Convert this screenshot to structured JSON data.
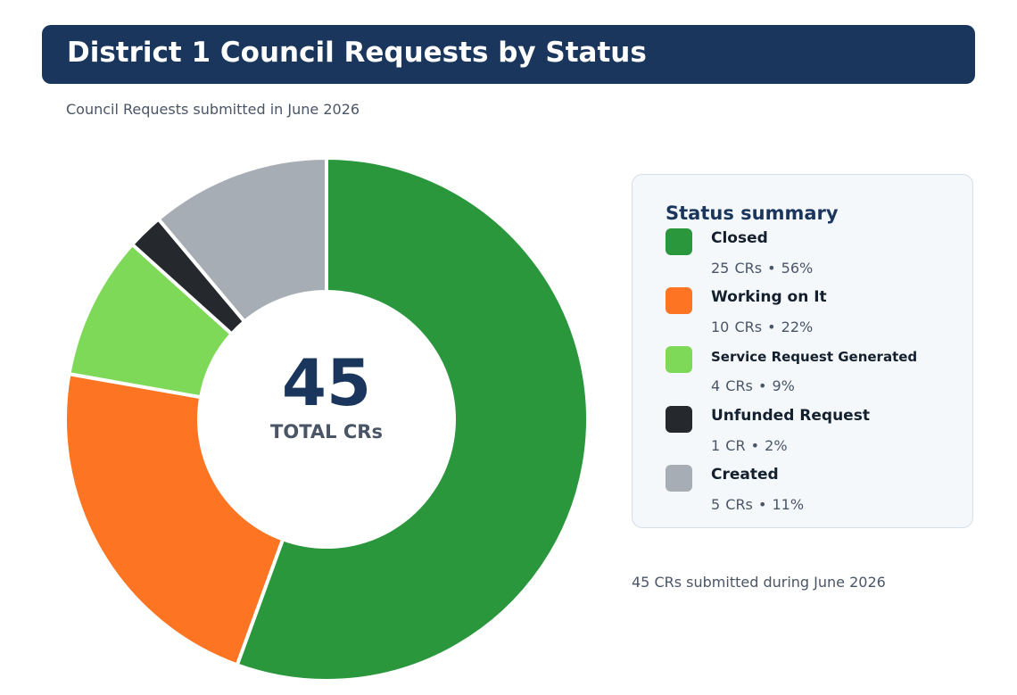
{
  "header": {
    "title": "District 1 Council Requests by Status",
    "subtitle": "Council Requests submitted in June 2026"
  },
  "chart_data": {
    "type": "pie",
    "hole": true,
    "categories": [
      "Closed",
      "Working on It",
      "Service Request Generated",
      "Unfunded Request",
      "Created"
    ],
    "values": [
      25,
      10,
      4,
      1,
      5
    ],
    "colors": [
      "#2a973d",
      "#fd7522",
      "#7fd958",
      "#25292e",
      "#a7adb4"
    ],
    "center_value": "45",
    "center_label": "TOTAL CRs"
  },
  "summary": {
    "title": "Status summary",
    "items": [
      {
        "label": "Closed",
        "detail": "25 CRs  •  56%",
        "color": "#2a973d"
      },
      {
        "label": "Working on It",
        "detail": "10 CRs  •  22%",
        "color": "#fd7522"
      },
      {
        "label": "Service Request Generated",
        "detail": "4 CRs  •  9%",
        "color": "#7fd958"
      },
      {
        "label": "Unfunded Request",
        "detail": "1 CR  •  2%",
        "color": "#25292e"
      },
      {
        "label": "Created",
        "detail": "5 CRs  •  11%",
        "color": "#a7adb4"
      }
    ]
  },
  "footnote": "45 CRs submitted during June 2026"
}
